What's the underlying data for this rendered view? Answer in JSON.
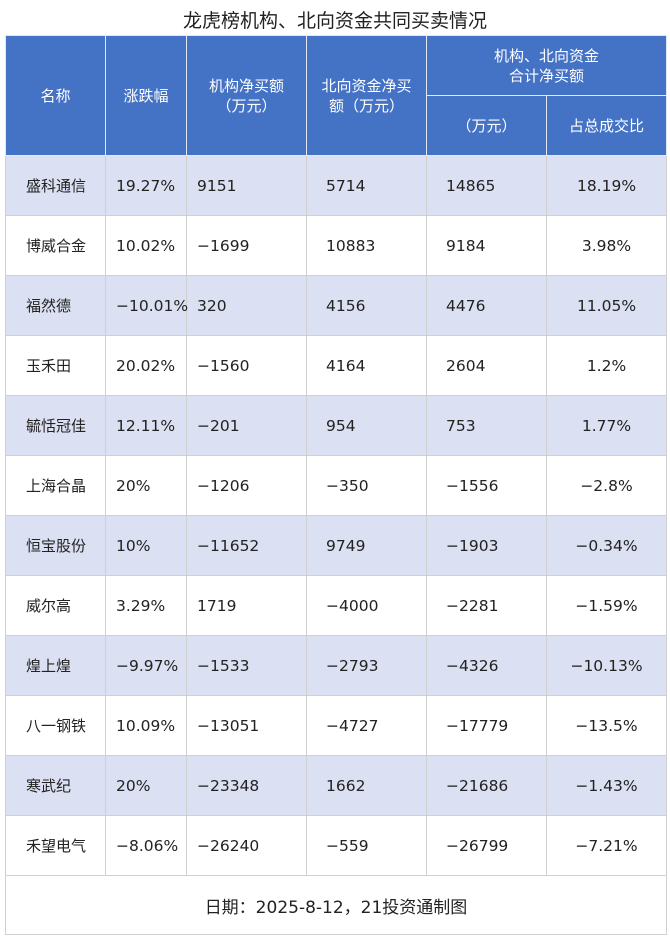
{
  "title": "龙虎榜机构、北向资金共同买卖情况",
  "headers": {
    "name": "名称",
    "change": "涨跌幅",
    "inst": "机构净买额（万元）",
    "north": "北向资金净买额（万元）",
    "combined": "机构、北向资金合计净买额",
    "combined_amount": "（万元）",
    "ratio": "占总成交比"
  },
  "rows": [
    [
      "盛科通信",
      "19.27%",
      "9151",
      "5714",
      "14865",
      "18.19%"
    ],
    [
      "博威合金",
      "10.02%",
      "−1699",
      "10883",
      "9184",
      "3.98%"
    ],
    [
      "福然德",
      "−10.01%",
      "320",
      "4156",
      "4476",
      "11.05%"
    ],
    [
      "玉禾田",
      "20.02%",
      "−1560",
      "4164",
      "2604",
      "1.2%"
    ],
    [
      "毓恬冠佳",
      "12.11%",
      "−201",
      "954",
      "753",
      "1.77%"
    ],
    [
      "上海合晶",
      "20%",
      "−1206",
      "−350",
      "−1556",
      "−2.8%"
    ],
    [
      "恒宝股份",
      "10%",
      "−11652",
      "9749",
      "−1903",
      "−0.34%"
    ],
    [
      "威尔高",
      "3.29%",
      "1719",
      "−4000",
      "−2281",
      "−1.59%"
    ],
    [
      "煌上煌",
      "−9.97%",
      "−1533",
      "−2793",
      "−4326",
      "−10.13%"
    ],
    [
      "八一钢铁",
      "10.09%",
      "−13051",
      "−4727",
      "−17779",
      "−13.5%"
    ],
    [
      "寒武纪",
      "20%",
      "−23348",
      "1662",
      "−21686",
      "−1.43%"
    ],
    [
      "禾望电气",
      "−8.06%",
      "−26240",
      "−559",
      "−26799",
      "−7.21%"
    ]
  ],
  "footer": "日期：2025-8-12，21投资通制图"
}
